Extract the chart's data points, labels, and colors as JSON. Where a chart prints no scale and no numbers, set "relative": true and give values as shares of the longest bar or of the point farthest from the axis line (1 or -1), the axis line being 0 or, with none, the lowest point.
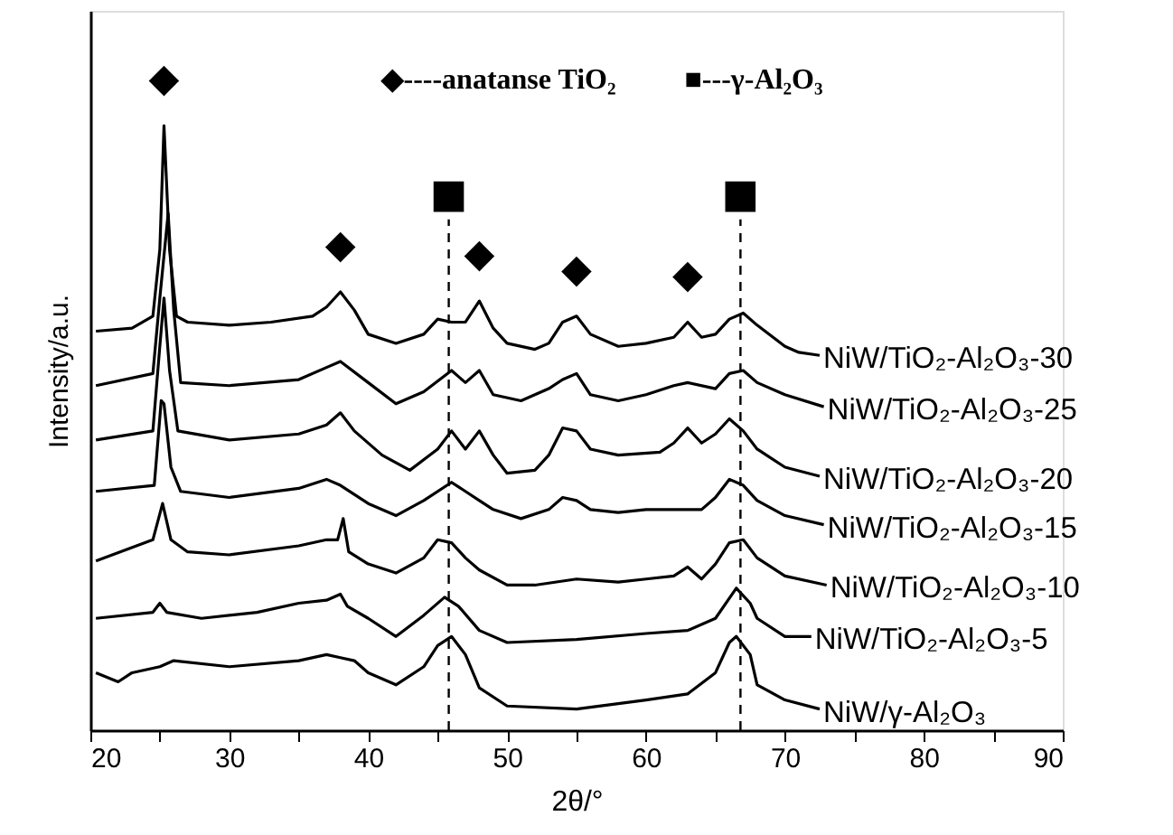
{
  "chart_data": {
    "type": "line",
    "relative": true,
    "xlabel": "2θ/°",
    "ylabel": "Intensity/a.u.",
    "xlim": [
      20,
      90
    ],
    "xticks": [
      20,
      {
        "value": 25,
        "label": null
      },
      30,
      {
        "value": 35,
        "label": null
      },
      40,
      {
        "value": 45,
        "label": null
      },
      50,
      {
        "value": 55,
        "label": null
      },
      60,
      {
        "value": 65,
        "label": null
      },
      70,
      {
        "value": 75,
        "label": null
      },
      80,
      {
        "value": 85,
        "label": null
      },
      90
    ],
    "grid": false,
    "legend": false,
    "marker": "none",
    "line_style": "solid",
    "series": [
      {
        "name": "NiW/TiO₂-Al₂O₃-30",
        "color": "#000000",
        "x": [
          20.4,
          23,
          24.5,
          25,
          25.3,
          25.7,
          26.2,
          27,
          30,
          33,
          36,
          37,
          38,
          39,
          40,
          42,
          44,
          45,
          46,
          47,
          48,
          49,
          50,
          52,
          53,
          54,
          55,
          56,
          58,
          60,
          62,
          63,
          64,
          65,
          66,
          67,
          68,
          70,
          71,
          72.5
        ],
        "values": [
          0.66,
          0.665,
          0.685,
          0.795,
          1.0,
          0.795,
          0.685,
          0.675,
          0.67,
          0.675,
          0.685,
          0.7,
          0.725,
          0.695,
          0.655,
          0.64,
          0.655,
          0.68,
          0.675,
          0.675,
          0.71,
          0.665,
          0.64,
          0.63,
          0.64,
          0.675,
          0.685,
          0.655,
          0.635,
          0.64,
          0.65,
          0.675,
          0.65,
          0.655,
          0.68,
          0.69,
          0.67,
          0.635,
          0.625,
          0.62
        ]
      },
      {
        "name": "NiW/TiO₂-Al₂O₃-25",
        "color": "#000000",
        "x": [
          20.4,
          24.5,
          25,
          25.6,
          26,
          26.5,
          30,
          35,
          37,
          38,
          40,
          42,
          44,
          46,
          47,
          48,
          49,
          51,
          53,
          54,
          55,
          56,
          58,
          60,
          62,
          63,
          65,
          66,
          67,
          68,
          70,
          72.8
        ],
        "values": [
          0.57,
          0.59,
          0.715,
          0.855,
          0.695,
          0.575,
          0.57,
          0.58,
          0.6,
          0.61,
          0.575,
          0.54,
          0.56,
          0.595,
          0.575,
          0.595,
          0.555,
          0.545,
          0.565,
          0.58,
          0.59,
          0.555,
          0.545,
          0.555,
          0.57,
          0.575,
          0.565,
          0.59,
          0.595,
          0.575,
          0.555,
          0.535
        ]
      },
      {
        "name": "NiW/TiO₂-Al₂O₃-20",
        "color": "#000000",
        "x": [
          20.4,
          24.5,
          25,
          25.3,
          25.7,
          26.3,
          30,
          35,
          37,
          38,
          39,
          41,
          43,
          45,
          46,
          47,
          48,
          49,
          50,
          52,
          53,
          54,
          55,
          56,
          58,
          61,
          62,
          63,
          64,
          65,
          66,
          67,
          68,
          70,
          72.5
        ],
        "values": [
          0.48,
          0.495,
          0.635,
          0.715,
          0.595,
          0.495,
          0.48,
          0.49,
          0.505,
          0.525,
          0.495,
          0.455,
          0.43,
          0.465,
          0.495,
          0.465,
          0.495,
          0.455,
          0.425,
          0.43,
          0.455,
          0.5,
          0.495,
          0.465,
          0.455,
          0.46,
          0.475,
          0.5,
          0.475,
          0.49,
          0.515,
          0.495,
          0.465,
          0.435,
          0.42
        ]
      },
      {
        "name": "NiW/TiO₂-Al₂O₃-15",
        "color": "#000000",
        "x": [
          20.4,
          24.6,
          25.1,
          25.3,
          25.8,
          26.5,
          30,
          35,
          37,
          38,
          40,
          42,
          44,
          46,
          47,
          48,
          49,
          51,
          53,
          54,
          55,
          56,
          58,
          60,
          62,
          64,
          65,
          66,
          67,
          68,
          70,
          72.8
        ],
        "values": [
          0.395,
          0.405,
          0.545,
          0.54,
          0.435,
          0.395,
          0.385,
          0.4,
          0.415,
          0.405,
          0.375,
          0.355,
          0.38,
          0.41,
          0.395,
          0.38,
          0.365,
          0.35,
          0.365,
          0.385,
          0.38,
          0.365,
          0.36,
          0.365,
          0.365,
          0.365,
          0.385,
          0.415,
          0.405,
          0.38,
          0.355,
          0.34
        ]
      },
      {
        "name": "NiW/TiO₂-Al₂O₃-10",
        "color": "#000000",
        "x": [
          20.4,
          24.5,
          25.2,
          25.8,
          27,
          30,
          35,
          37,
          37.8,
          38.2,
          38.6,
          40,
          42,
          44,
          45,
          46,
          47,
          48,
          50,
          52,
          55,
          58,
          60,
          62,
          63,
          64,
          65,
          66,
          67,
          68,
          70,
          73
        ],
        "values": [
          0.28,
          0.315,
          0.375,
          0.315,
          0.295,
          0.29,
          0.305,
          0.315,
          0.315,
          0.35,
          0.295,
          0.275,
          0.26,
          0.285,
          0.315,
          0.31,
          0.285,
          0.265,
          0.24,
          0.24,
          0.25,
          0.245,
          0.25,
          0.255,
          0.27,
          0.25,
          0.275,
          0.31,
          0.315,
          0.285,
          0.255,
          0.24
        ]
      },
      {
        "name": "NiW/TiO₂-Al₂O₃-5",
        "color": "#000000",
        "x": [
          20.4,
          24.5,
          25,
          25.5,
          28,
          32,
          35,
          37,
          38,
          38.5,
          40,
          42,
          44,
          45.5,
          46.5,
          48,
          50,
          55,
          60,
          63,
          65,
          66.5,
          67.5,
          68,
          70,
          71.9
        ],
        "values": [
          0.185,
          0.195,
          0.21,
          0.195,
          0.185,
          0.195,
          0.21,
          0.215,
          0.225,
          0.205,
          0.185,
          0.155,
          0.19,
          0.22,
          0.205,
          0.165,
          0.145,
          0.15,
          0.16,
          0.165,
          0.185,
          0.235,
          0.21,
          0.185,
          0.155,
          0.155
        ]
      },
      {
        "name": "NiW/γ-Al₂O₃",
        "color": "#000000",
        "x": [
          20.4,
          22,
          23,
          25,
          26,
          30,
          35,
          37,
          38,
          39,
          40,
          42,
          44,
          45,
          46,
          47,
          48,
          50,
          55,
          60,
          63,
          65,
          66,
          66.5,
          67.5,
          68,
          70,
          72.5
        ],
        "values": [
          0.095,
          0.08,
          0.095,
          0.105,
          0.115,
          0.105,
          0.115,
          0.125,
          0.12,
          0.115,
          0.095,
          0.075,
          0.105,
          0.14,
          0.155,
          0.125,
          0.07,
          0.04,
          0.035,
          0.05,
          0.06,
          0.095,
          0.145,
          0.155,
          0.125,
          0.075,
          0.05,
          0.035
        ]
      }
    ],
    "ref_lines": [
      {
        "axis": "x",
        "value": 45.8,
        "line_style": "dashed",
        "color": "#000000"
      },
      {
        "axis": "x",
        "value": 66.8,
        "line_style": "dashed",
        "color": "#000000"
      }
    ],
    "annotations": [
      {
        "text": "◆",
        "x": 25.3,
        "y": 1.0
      },
      {
        "text": "◆",
        "x": 38,
        "y": 0.725
      },
      {
        "text": "◆",
        "x": 48,
        "y": 0.71
      },
      {
        "text": "◆",
        "x": 55,
        "y": 0.685
      },
      {
        "text": "◆",
        "x": 63,
        "y": 0.675
      },
      {
        "text": "■",
        "x": 45.8,
        "y": 0.845
      },
      {
        "text": "■",
        "x": 66.8,
        "y": 0.845
      },
      "◆----anatanse TiO₂",
      "■---γ-Al₂O₃"
    ]
  }
}
